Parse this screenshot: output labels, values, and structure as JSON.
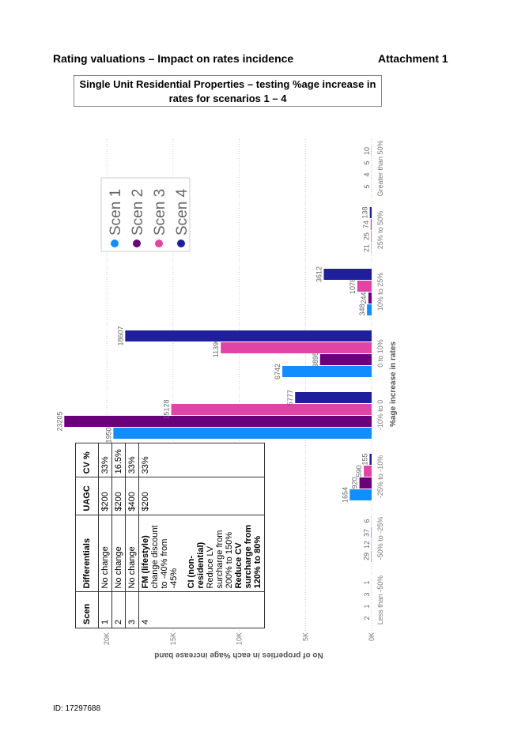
{
  "header": {
    "title": "Rating valuations – Impact on rates incidence",
    "attachment": "Attachment 1"
  },
  "title_box": [
    "Single Unit Residential Properties – testing %age increase in",
    "rates for scenarios 1 – 4"
  ],
  "chart_data": {
    "type": "bar",
    "xlabel": "%age increase in rates",
    "ylabel": "No of properties in each %age increase band",
    "categories": [
      "Less than -50%",
      "-50% to -25%",
      "-25% to -10%",
      "-10% to 0",
      "0 to 10%",
      "10% to 25%",
      "25% to 50%",
      "Greater than 50%"
    ],
    "series": [
      {
        "name": "Scen 1",
        "color": "#118dff",
        "values": [
          2,
          29,
          1654,
          19500,
          6742,
          348,
          21,
          5
        ]
      },
      {
        "name": "Scen 2",
        "color": "#6b007b",
        "values": [
          1,
          12,
          920,
          23205,
          3895,
          244,
          25,
          4
        ]
      },
      {
        "name": "Scen 3",
        "color": "#e044a7",
        "values": [
          3,
          37,
          590,
          15128,
          11390,
          1078,
          74,
          5
        ]
      },
      {
        "name": "Scen 4",
        "color": "#1f1f9e",
        "values": [
          1,
          6,
          155,
          5777,
          18607,
          3612,
          138,
          10
        ]
      }
    ],
    "ylim": [
      0,
      24000
    ],
    "yticks": [
      {
        "value": 0,
        "label": "0K"
      },
      {
        "value": 5000,
        "label": "5K"
      },
      {
        "value": 10000,
        "label": "10K"
      },
      {
        "value": 15000,
        "label": "15K"
      },
      {
        "value": 20000,
        "label": "20K"
      }
    ],
    "grid": true
  },
  "table": {
    "columns": [
      "Scen",
      "Differentials",
      "UAGC",
      "CV %"
    ],
    "rows": [
      [
        "1",
        "No change",
        "$200",
        "33%"
      ],
      [
        "2",
        "No change",
        "$200",
        "16.5%"
      ],
      [
        "3",
        "No change",
        "$400",
        "33%"
      ],
      [
        "4",
        [
          "FM (lifestyle)",
          "change discount to -40% from -45%",
          "CI (non-residential)",
          "Reduce LV surcharge from 200% to 150%",
          "Reduce CV surcharge from 120% to 80%"
        ],
        "$200",
        "33%"
      ]
    ]
  },
  "footer": "ID: 17297688"
}
